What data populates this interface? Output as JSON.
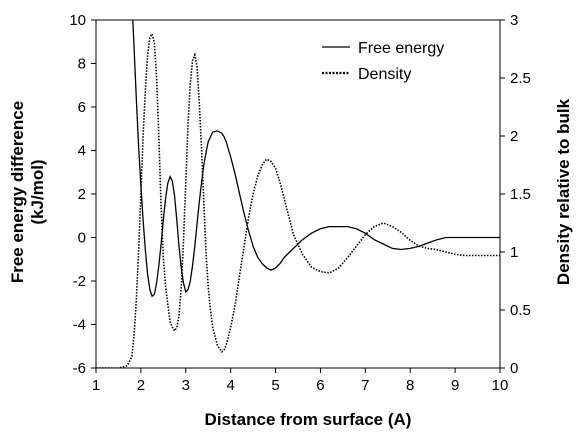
{
  "chart_data": {
    "type": "line",
    "title": "",
    "xlabel": "Distance from surface (A)",
    "ylabel_left": [
      "Free energy difference",
      "(kJ/mol)"
    ],
    "ylabel_right": "Density relative to bulk",
    "xlim": [
      1,
      10
    ],
    "ylim_left": [
      -6,
      10
    ],
    "ylim_right": [
      0,
      3
    ],
    "x_ticks": [
      "1",
      "2",
      "3",
      "4",
      "5",
      "6",
      "7",
      "8",
      "9",
      "10"
    ],
    "y_left_ticks": [
      "-6",
      "-4",
      "-2",
      "0",
      "2",
      "4",
      "6",
      "8",
      "10"
    ],
    "y_right_ticks": [
      "0",
      "0.5",
      "1",
      "1.5",
      "2",
      "2.5",
      "3"
    ],
    "grid": false,
    "legend_position": "top-right",
    "series": [
      {
        "name": "Free energy",
        "axis": "left",
        "style": "solid",
        "color": "#000000",
        "x": [
          1.82,
          1.85,
          1.9,
          1.95,
          2.0,
          2.05,
          2.1,
          2.15,
          2.2,
          2.25,
          2.3,
          2.35,
          2.4,
          2.45,
          2.5,
          2.55,
          2.6,
          2.65,
          2.7,
          2.75,
          2.8,
          2.85,
          2.9,
          2.95,
          3.0,
          3.05,
          3.1,
          3.15,
          3.2,
          3.25,
          3.3,
          3.35,
          3.4,
          3.45,
          3.5,
          3.6,
          3.7,
          3.8,
          3.85,
          3.9,
          4.0,
          4.1,
          4.2,
          4.3,
          4.4,
          4.5,
          4.6,
          4.7,
          4.8,
          4.9,
          5.0,
          5.1,
          5.2,
          5.4,
          5.6,
          5.8,
          6.0,
          6.2,
          6.4,
          6.6,
          6.8,
          7.0,
          7.2,
          7.4,
          7.6,
          7.8,
          8.0,
          8.2,
          8.4,
          8.6,
          8.8,
          9.0,
          9.2,
          9.5,
          10.0
        ],
        "y": [
          10.0,
          8.6,
          6.3,
          4.2,
          2.4,
          0.8,
          -0.6,
          -1.7,
          -2.4,
          -2.7,
          -2.6,
          -2.1,
          -1.3,
          -0.3,
          0.8,
          1.8,
          2.5,
          2.8,
          2.6,
          1.9,
          0.8,
          -0.4,
          -1.4,
          -2.1,
          -2.5,
          -2.4,
          -2.0,
          -1.3,
          -0.4,
          0.6,
          1.6,
          2.5,
          3.3,
          3.9,
          4.4,
          4.85,
          4.9,
          4.8,
          4.65,
          4.4,
          3.7,
          2.9,
          2.0,
          1.1,
          0.3,
          -0.4,
          -0.9,
          -1.2,
          -1.4,
          -1.5,
          -1.4,
          -1.2,
          -0.9,
          -0.5,
          -0.1,
          0.2,
          0.4,
          0.5,
          0.5,
          0.5,
          0.4,
          0.2,
          -0.1,
          -0.3,
          -0.5,
          -0.55,
          -0.5,
          -0.4,
          -0.25,
          -0.1,
          0.0,
          0.0,
          0.0,
          0.0,
          0.0
        ]
      },
      {
        "name": "Density",
        "axis": "right",
        "style": "dotted",
        "color": "#000000",
        "x": [
          1.0,
          1.5,
          1.7,
          1.8,
          1.85,
          1.9,
          1.95,
          2.0,
          2.05,
          2.1,
          2.15,
          2.2,
          2.25,
          2.3,
          2.35,
          2.4,
          2.45,
          2.5,
          2.55,
          2.6,
          2.65,
          2.7,
          2.75,
          2.8,
          2.85,
          2.9,
          2.95,
          3.0,
          3.05,
          3.1,
          3.15,
          3.2,
          3.25,
          3.3,
          3.35,
          3.4,
          3.45,
          3.5,
          3.55,
          3.6,
          3.7,
          3.8,
          3.85,
          3.9,
          4.0,
          4.1,
          4.2,
          4.3,
          4.4,
          4.5,
          4.6,
          4.7,
          4.8,
          4.9,
          5.0,
          5.1,
          5.2,
          5.3,
          5.4,
          5.6,
          5.8,
          6.0,
          6.2,
          6.4,
          6.6,
          6.8,
          7.0,
          7.2,
          7.4,
          7.6,
          7.8,
          8.0,
          8.2,
          8.4,
          8.6,
          8.8,
          9.0,
          9.2,
          9.5,
          10.0
        ],
        "y": [
          0.0,
          0.0,
          0.02,
          0.1,
          0.3,
          0.6,
          1.0,
          1.5,
          2.0,
          2.4,
          2.7,
          2.85,
          2.88,
          2.8,
          2.5,
          2.0,
          1.4,
          0.95,
          0.7,
          0.55,
          0.4,
          0.35,
          0.32,
          0.35,
          0.45,
          0.7,
          1.1,
          1.6,
          2.1,
          2.45,
          2.65,
          2.7,
          2.6,
          2.3,
          1.9,
          1.45,
          1.0,
          0.7,
          0.5,
          0.35,
          0.2,
          0.14,
          0.15,
          0.2,
          0.35,
          0.55,
          0.8,
          1.05,
          1.3,
          1.5,
          1.65,
          1.75,
          1.8,
          1.78,
          1.72,
          1.6,
          1.45,
          1.3,
          1.15,
          0.98,
          0.87,
          0.83,
          0.82,
          0.86,
          0.95,
          1.05,
          1.15,
          1.22,
          1.25,
          1.22,
          1.17,
          1.1,
          1.05,
          1.03,
          1.02,
          1.0,
          0.98,
          0.97,
          0.97,
          0.97
        ]
      }
    ],
    "legend": [
      {
        "label": "Free energy",
        "style": "solid"
      },
      {
        "label": "Density",
        "style": "dotted"
      }
    ]
  }
}
